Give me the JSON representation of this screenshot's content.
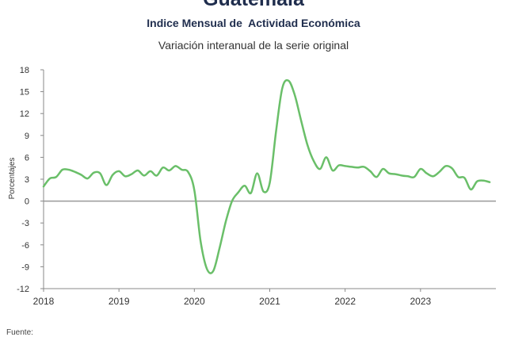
{
  "title_top": "Guatemala",
  "title": "Indice Mensual de  Actividad Económica",
  "subtitle": "Variación interanual de la serie original",
  "source_label": "Fuente:",
  "chart_data": {
    "type": "line",
    "title": "Indice Mensual de  Actividad Económica",
    "subtitle": "Variación interanual de la serie original",
    "xlabel": "",
    "ylabel": "Porcentajes",
    "ylim": [
      -12,
      18
    ],
    "yticks": [
      "18",
      "15",
      "12",
      "9",
      "6",
      "3",
      "0",
      "-3",
      "-6",
      "-9",
      "-12"
    ],
    "xticks": [
      "2018",
      "2019",
      "2020",
      "2021",
      "2022",
      "2023"
    ],
    "xlim": [
      2018.0,
      2024.0
    ],
    "grid": false,
    "legend": "none",
    "colors": {
      "line": "#6abf69",
      "zero_line": "#999999",
      "axis": "#888888"
    },
    "series": [
      {
        "x": [
          2018.0,
          2018.083,
          2018.167,
          2018.25,
          2018.333,
          2018.417,
          2018.5,
          2018.583,
          2018.667,
          2018.75,
          2018.833,
          2018.917,
          2019.0,
          2019.083,
          2019.167,
          2019.25,
          2019.333,
          2019.417,
          2019.5,
          2019.583,
          2019.667,
          2019.75,
          2019.833,
          2019.917,
          2020.0,
          2020.083,
          2020.167,
          2020.25,
          2020.333,
          2020.417,
          2020.5,
          2020.583,
          2020.667,
          2020.75,
          2020.833,
          2020.917,
          2021.0,
          2021.083,
          2021.167,
          2021.25,
          2021.333,
          2021.417,
          2021.5,
          2021.583,
          2021.667,
          2021.75,
          2021.833,
          2021.917,
          2022.0,
          2022.083,
          2022.167,
          2022.25,
          2022.333,
          2022.417,
          2022.5,
          2022.583,
          2022.667,
          2022.75,
          2022.833,
          2022.917,
          2023.0,
          2023.083,
          2023.167,
          2023.25,
          2023.333,
          2023.417,
          2023.5,
          2023.583,
          2023.667,
          2023.75,
          2023.833,
          2023.917
        ],
        "y": [
          2.0,
          3.1,
          3.3,
          4.3,
          4.3,
          4.0,
          3.6,
          3.1,
          3.9,
          3.8,
          2.2,
          3.6,
          4.1,
          3.4,
          3.7,
          4.2,
          3.5,
          4.1,
          3.5,
          4.6,
          4.2,
          4.8,
          4.3,
          4.0,
          1.5,
          -5.5,
          -9.3,
          -9.6,
          -6.5,
          -2.8,
          0.0,
          1.2,
          2.1,
          1.1,
          3.8,
          1.3,
          2.5,
          9.5,
          15.5,
          16.5,
          14.5,
          11.0,
          7.7,
          5.5,
          4.4,
          6.0,
          4.2,
          4.9,
          4.8,
          4.7,
          4.6,
          4.7,
          4.1,
          3.3,
          4.4,
          3.8,
          3.7,
          3.5,
          3.4,
          3.3,
          4.4,
          3.8,
          3.4,
          4.0,
          4.8,
          4.5,
          3.3,
          3.2,
          1.6,
          2.7,
          2.8,
          2.6
        ]
      }
    ]
  }
}
